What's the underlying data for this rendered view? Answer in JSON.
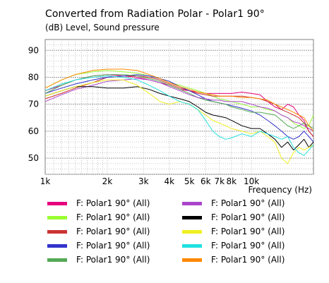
{
  "chart_data": {
    "type": "line",
    "title": "Converted from Radiation Polar - Polar1 90°",
    "subtitle": "(dB)  Level, Sound pressure",
    "xlabel": "Frequency  (Hz)",
    "ylabel": "",
    "x_scale": "log",
    "xlim": [
      1000,
      20000
    ],
    "ylim": [
      44,
      94
    ],
    "y_ticks": [
      50,
      60,
      70,
      80,
      90
    ],
    "y_tick_labels": [
      "50",
      "60",
      "70",
      "80",
      "90"
    ],
    "x_ticks": [
      1000,
      2000,
      3000,
      4000,
      5000,
      6000,
      7000,
      8000,
      10000
    ],
    "x_tick_labels": [
      "1k",
      "2k",
      "3k",
      "4k",
      "5k",
      "6k",
      "7k",
      "8k",
      "10k"
    ],
    "grid": true,
    "legend_position": "bottom",
    "x": [
      1000,
      1200,
      1400,
      1700,
      2000,
      2400,
      2800,
      3200,
      3600,
      4000,
      4500,
      5000,
      5500,
      6000,
      6500,
      7000,
      7500,
      8000,
      9000,
      10000,
      11000,
      12000,
      13000,
      14000,
      15000,
      16000,
      17000,
      18000,
      19000,
      20000
    ],
    "series": [
      {
        "name": "F: Polar1 90°  (All)",
        "color": "#e6007e",
        "values": [
          75,
          77,
          79,
          80.5,
          81,
          80.5,
          80,
          79,
          78,
          77,
          75.5,
          75,
          74.5,
          74,
          74,
          74,
          74,
          74,
          74.5,
          74,
          73.5,
          71,
          69,
          68,
          70,
          69,
          66,
          64,
          60,
          58
        ]
      },
      {
        "name": "F: Polar1 90°  (All)",
        "color": "#99ff33",
        "values": [
          76,
          79,
          81,
          82,
          82.5,
          82,
          81.5,
          80.5,
          79.5,
          78,
          77,
          76,
          75,
          74,
          73,
          72,
          71.5,
          71,
          70,
          69,
          69,
          68,
          67.5,
          66,
          65,
          63,
          62,
          61,
          62,
          66
        ]
      },
      {
        "name": "F: Polar1 90°  (All)",
        "color": "#cc3333",
        "values": [
          72,
          74,
          76,
          78,
          80,
          80.5,
          80.5,
          80,
          79,
          77.5,
          76,
          75,
          74,
          73.5,
          73,
          73,
          73,
          73,
          73,
          72.5,
          72,
          71,
          70,
          68,
          67,
          66,
          65,
          63,
          60,
          58
        ]
      },
      {
        "name": "F: Polar1 90°  (All)",
        "color": "#3333cc",
        "values": [
          74,
          76,
          77.5,
          79,
          80,
          80.5,
          81,
          80.5,
          79.5,
          78.5,
          76.5,
          75,
          73.5,
          72,
          71,
          70.5,
          70,
          69.5,
          68.5,
          67.5,
          66,
          64,
          62,
          60,
          58,
          57,
          58,
          60,
          58,
          56
        ]
      },
      {
        "name": "F: Polar1 90°  (All)",
        "color": "#55aa55",
        "values": [
          74,
          77,
          79,
          80.5,
          81,
          81,
          80.5,
          79.5,
          78.5,
          77,
          75.5,
          74,
          72.5,
          71.5,
          71,
          70.5,
          70,
          69,
          68,
          67,
          67,
          66.5,
          66,
          64,
          62,
          61,
          62,
          63,
          62,
          61
        ]
      },
      {
        "name": "F: Polar1 90°  (All)",
        "color": "#aa44cc",
        "values": [
          71,
          73.5,
          75.5,
          77,
          78.5,
          79,
          79.5,
          79,
          78,
          76.5,
          75,
          73.5,
          72.5,
          72,
          71.5,
          71.5,
          71,
          71,
          71,
          70,
          69,
          68.5,
          67.5,
          66,
          65,
          63.5,
          63,
          62,
          61,
          60
        ]
      },
      {
        "name": "F: Polar1 90°  (All)",
        "color": "#000000",
        "values": [
          73,
          75,
          76.5,
          76.5,
          76,
          76,
          76.5,
          75.5,
          74,
          73,
          72,
          71,
          69,
          67,
          66,
          65.5,
          65,
          64,
          62,
          61,
          61,
          59,
          57,
          54,
          56,
          53,
          55,
          57,
          54,
          56
        ]
      },
      {
        "name": "F: Polar1 90°  (All)",
        "color": "#f0f020",
        "values": [
          73,
          75,
          76.5,
          78,
          79,
          79,
          77,
          74,
          71,
          70,
          71,
          70,
          68,
          66,
          64,
          63,
          62,
          61,
          60,
          59,
          60,
          58,
          56,
          50,
          48,
          52,
          54,
          53,
          54,
          55
        ]
      },
      {
        "name": "F: Polar1 90°  (All)",
        "color": "#22e0e0",
        "values": [
          75,
          77.5,
          79,
          80,
          80.5,
          80,
          79,
          77,
          75,
          73,
          71,
          70,
          68,
          64,
          60,
          58,
          57,
          57.5,
          59,
          58,
          60,
          59,
          58,
          57,
          58,
          54,
          52,
          51,
          53,
          55
        ]
      },
      {
        "name": "F: Polar1 90°  (All)",
        "color": "#ff8800",
        "values": [
          76,
          79,
          81,
          82.5,
          83,
          83,
          82.5,
          81,
          79.5,
          78,
          76.5,
          75.5,
          74.5,
          74,
          73.5,
          73,
          73,
          73,
          72.5,
          72.5,
          72,
          71.5,
          70,
          69,
          68,
          67,
          66,
          65,
          62,
          60
        ]
      }
    ]
  }
}
